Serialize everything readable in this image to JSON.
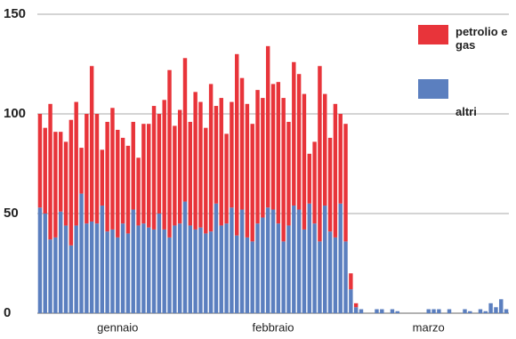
{
  "chart_data": {
    "type": "stacked_bar",
    "categories": [
      null,
      null,
      null,
      null,
      null,
      null,
      null,
      null,
      null,
      null,
      null,
      null,
      null,
      null,
      null,
      "gennaio",
      null,
      null,
      null,
      null,
      null,
      null,
      null,
      null,
      null,
      null,
      null,
      null,
      null,
      null,
      null,
      null,
      null,
      null,
      null,
      null,
      null,
      null,
      null,
      null,
      null,
      null,
      null,
      null,
      null,
      "febbraio",
      null,
      null,
      null,
      null,
      null,
      null,
      null,
      null,
      null,
      null,
      null,
      null,
      null,
      null,
      null,
      null,
      null,
      null,
      null,
      null,
      null,
      null,
      null,
      null,
      null,
      null,
      null,
      null,
      null,
      "marzo",
      null,
      null,
      null,
      null,
      null,
      null,
      null,
      null,
      null,
      null,
      null,
      null,
      null,
      null,
      null
    ],
    "series": [
      {
        "name": "altri",
        "color": "#5b7fbf",
        "values": [
          53,
          50,
          37,
          38,
          51,
          44,
          34,
          44,
          60,
          45,
          46,
          45,
          54,
          41,
          42,
          38,
          45,
          40,
          52,
          44,
          45,
          43,
          42,
          50,
          42,
          38,
          44,
          45,
          56,
          44,
          42,
          43,
          40,
          41,
          55,
          44,
          45,
          53,
          39,
          52,
          38,
          36,
          45,
          48,
          53,
          52,
          45,
          36,
          44,
          54,
          52,
          42,
          55,
          45,
          36,
          54,
          41,
          38,
          55,
          36,
          12,
          3,
          2,
          0,
          0,
          2,
          2,
          0,
          2,
          1,
          0,
          0,
          0,
          0,
          0,
          2,
          2,
          2,
          0,
          2,
          0,
          0,
          2,
          1,
          0,
          2,
          1,
          5,
          3,
          7,
          2
        ]
      },
      {
        "name": "petrolio e gas",
        "color": "#e8343a",
        "values": [
          47,
          43,
          68,
          53,
          40,
          42,
          63,
          62,
          23,
          55,
          78,
          55,
          28,
          55,
          61,
          54,
          43,
          44,
          44,
          34,
          50,
          52,
          62,
          50,
          65,
          84,
          50,
          57,
          72,
          52,
          69,
          63,
          53,
          74,
          49,
          64,
          45,
          53,
          91,
          66,
          67,
          59,
          67,
          60,
          81,
          63,
          71,
          72,
          52,
          72,
          68,
          68,
          25,
          41,
          88,
          56,
          47,
          67,
          45,
          59,
          8,
          2,
          0,
          0,
          0,
          0,
          0,
          0,
          0,
          0,
          0,
          0,
          0,
          0,
          0,
          0,
          0,
          0,
          0,
          0,
          0,
          0,
          0,
          0,
          0,
          0,
          0,
          0,
          0,
          0,
          0
        ]
      }
    ],
    "ylim": [
      0,
      150
    ],
    "yticks": [
      0,
      50,
      100,
      150
    ],
    "grid": true
  }
}
